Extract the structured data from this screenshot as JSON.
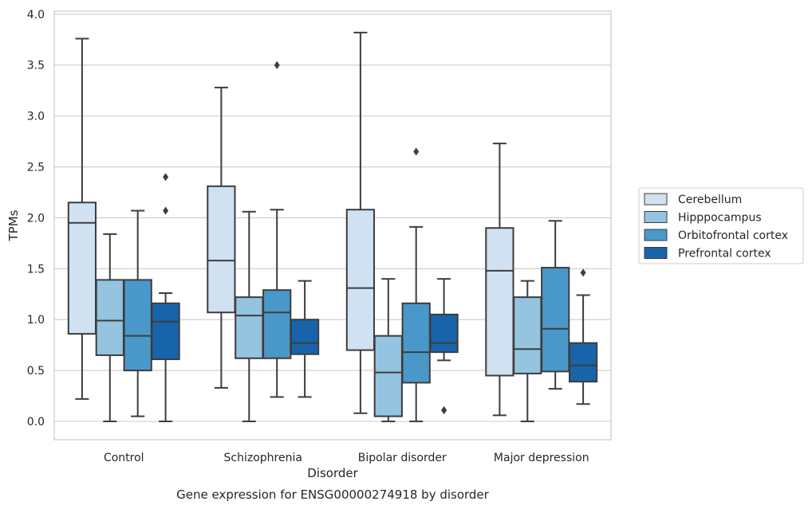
{
  "chart_data": {
    "type": "box",
    "xlabel": "Disorder",
    "ylabel": "TPMs",
    "caption": "Gene expression for ENSG00000274918 by disorder",
    "ylim": [
      -0.18,
      4.03
    ],
    "yticks": [
      "0.0",
      "0.5",
      "1.0",
      "1.5",
      "2.0",
      "2.5",
      "3.0",
      "3.5",
      "4.0"
    ],
    "grid": "horizontal",
    "legend_position": "right",
    "categories": [
      "Control",
      "Schizophrenia",
      "Bipolar disorder",
      "Major depression"
    ],
    "series": [
      {
        "name": "Cerebellum",
        "color": "#d0e1f2",
        "boxes": [
          {
            "whislo": 0.22,
            "q1": 0.86,
            "med": 1.95,
            "q3": 2.15,
            "whishi": 3.76,
            "fliers": []
          },
          {
            "whislo": 0.33,
            "q1": 1.07,
            "med": 1.58,
            "q3": 2.31,
            "whishi": 3.28,
            "fliers": []
          },
          {
            "whislo": 0.08,
            "q1": 0.7,
            "med": 1.31,
            "q3": 2.08,
            "whishi": 3.82,
            "fliers": []
          },
          {
            "whislo": 0.06,
            "q1": 0.45,
            "med": 1.48,
            "q3": 1.9,
            "whishi": 2.73,
            "fliers": []
          }
        ]
      },
      {
        "name": "Hipppocampus",
        "color": "#94c4df",
        "boxes": [
          {
            "whislo": 0.0,
            "q1": 0.65,
            "med": 0.99,
            "q3": 1.39,
            "whishi": 1.84,
            "fliers": []
          },
          {
            "whislo": 0.0,
            "q1": 0.62,
            "med": 1.04,
            "q3": 1.22,
            "whishi": 2.06,
            "fliers": []
          },
          {
            "whislo": 0.0,
            "q1": 0.05,
            "med": 0.48,
            "q3": 0.84,
            "whishi": 1.4,
            "fliers": []
          },
          {
            "whislo": 0.0,
            "q1": 0.47,
            "med": 0.71,
            "q3": 1.22,
            "whishi": 1.38,
            "fliers": []
          }
        ]
      },
      {
        "name": "Orbitofrontal cortex",
        "color": "#4a98c9",
        "boxes": [
          {
            "whislo": 0.05,
            "q1": 0.5,
            "med": 0.84,
            "q3": 1.39,
            "whishi": 2.07,
            "fliers": []
          },
          {
            "whislo": 0.24,
            "q1": 0.62,
            "med": 1.07,
            "q3": 1.29,
            "whishi": 2.08,
            "fliers": [
              3.5
            ]
          },
          {
            "whislo": 0.0,
            "q1": 0.38,
            "med": 0.68,
            "q3": 1.16,
            "whishi": 1.91,
            "fliers": [
              2.65
            ]
          },
          {
            "whislo": 0.32,
            "q1": 0.49,
            "med": 0.91,
            "q3": 1.51,
            "whishi": 1.97,
            "fliers": []
          }
        ]
      },
      {
        "name": "Prefrontal cortex",
        "color": "#1764ab",
        "boxes": [
          {
            "whislo": 0.0,
            "q1": 0.61,
            "med": 0.98,
            "q3": 1.16,
            "whishi": 1.26,
            "fliers": [
              2.07,
              2.4
            ]
          },
          {
            "whislo": 0.24,
            "q1": 0.66,
            "med": 0.77,
            "q3": 1.0,
            "whishi": 1.38,
            "fliers": []
          },
          {
            "whislo": 0.6,
            "q1": 0.68,
            "med": 0.77,
            "q3": 1.05,
            "whishi": 1.4,
            "fliers": [
              0.11,
              0.11
            ]
          },
          {
            "whislo": 0.17,
            "q1": 0.39,
            "med": 0.55,
            "q3": 0.77,
            "whishi": 1.24,
            "fliers": [
              1.46
            ]
          }
        ]
      }
    ]
  }
}
